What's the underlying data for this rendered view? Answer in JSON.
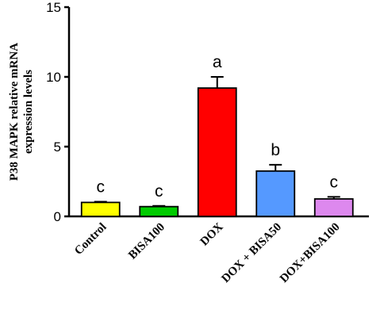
{
  "chart_data": {
    "type": "bar",
    "title": "",
    "ylabel_lines": [
      "P38 MAPK relative mRNA",
      "expression levels"
    ],
    "xlabel": "",
    "ylim": [
      0,
      15
    ],
    "yticks": [
      0,
      5,
      10,
      15
    ],
    "categories": [
      "Control",
      "BISA100",
      "DOX",
      "DOX + BISA50",
      "DOX+BISA100"
    ],
    "values": [
      1.0,
      0.7,
      9.2,
      3.25,
      1.25
    ],
    "errors": [
      0.05,
      0.05,
      0.8,
      0.45,
      0.15
    ],
    "annotations": [
      "c",
      "c",
      "a",
      "b",
      "c"
    ],
    "colors": [
      "#ffff00",
      "#00cc00",
      "#ff0000",
      "#5599ff",
      "#dd88ee"
    ],
    "grid": false,
    "legend": "none"
  }
}
